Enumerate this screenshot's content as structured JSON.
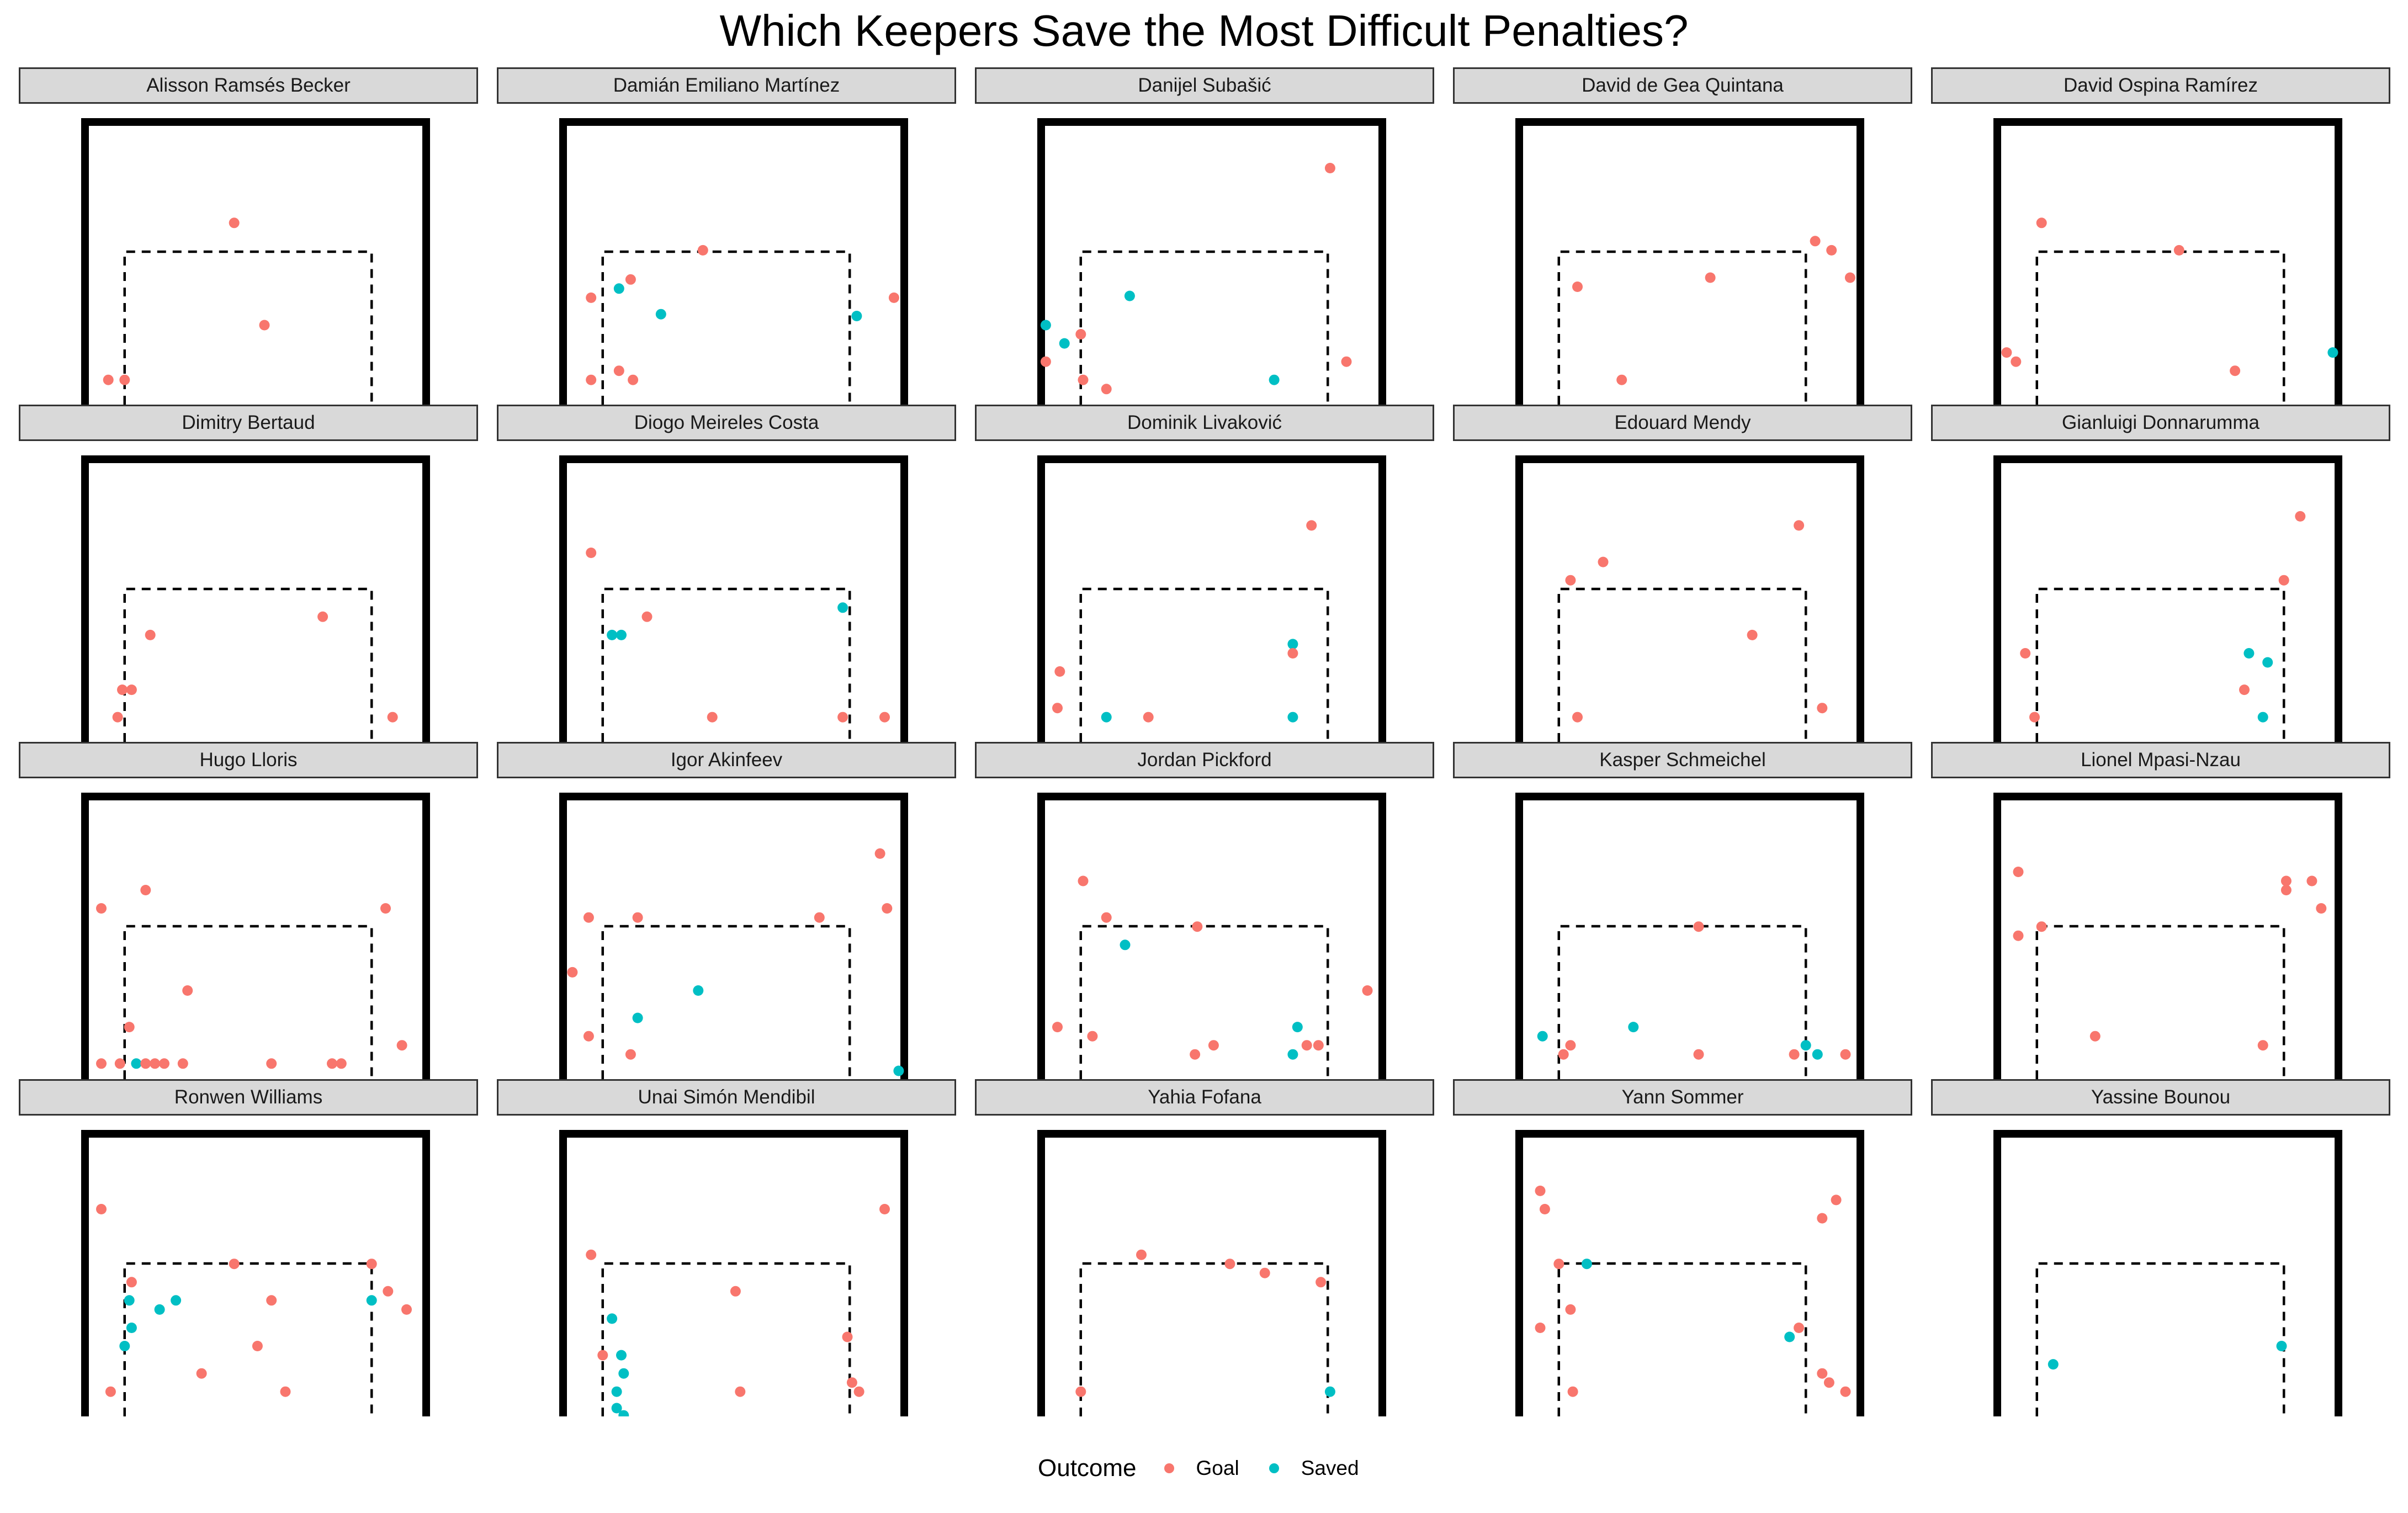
{
  "title": "Which Keepers Save the Most Difficult Penalties?",
  "legend": {
    "title": "Outcome",
    "entries": [
      {
        "label": "Goal",
        "color": "#F8766D"
      },
      {
        "label": "Saved",
        "color": "#00BFC4"
      }
    ]
  },
  "chart_data": {
    "type": "scatter",
    "facet_by": "goalkeeper",
    "x_range": [
      0,
      7.5
    ],
    "y_range": [
      0,
      2.75
    ],
    "goal_frame": {
      "left_post": 0,
      "right_post": 7.32,
      "crossbar": 2.44
    },
    "dashed_box": {
      "x": [
        0.9,
        6.1
      ],
      "top": 1.33
    },
    "panels": [
      {
        "name": "Alisson Ramsés Becker",
        "points": [
          [
            3.2,
            1.9,
            "Goal"
          ],
          [
            3.85,
            0.78,
            "Goal"
          ],
          [
            0.5,
            0.18,
            "Goal"
          ],
          [
            0.85,
            0.18,
            "Goal"
          ]
        ]
      },
      {
        "name": "Damián Emiliano Martínez",
        "points": [
          [
            3.0,
            1.6,
            "Goal"
          ],
          [
            0.6,
            1.08,
            "Goal"
          ],
          [
            1.45,
            1.28,
            "Goal"
          ],
          [
            1.2,
            1.18,
            "Saved"
          ],
          [
            2.1,
            0.9,
            "Saved"
          ],
          [
            7.1,
            1.08,
            "Goal"
          ],
          [
            6.3,
            0.88,
            "Saved"
          ],
          [
            0.6,
            0.18,
            "Goal"
          ],
          [
            1.2,
            0.28,
            "Goal"
          ],
          [
            1.5,
            0.18,
            "Goal"
          ]
        ]
      },
      {
        "name": "Danijel Subašić",
        "points": [
          [
            6.2,
            2.5,
            "Goal"
          ],
          [
            1.9,
            1.1,
            "Saved"
          ],
          [
            0.1,
            0.78,
            "Saved"
          ],
          [
            0.5,
            0.58,
            "Saved"
          ],
          [
            0.85,
            0.68,
            "Goal"
          ],
          [
            0.1,
            0.38,
            "Goal"
          ],
          [
            0.9,
            0.18,
            "Goal"
          ],
          [
            1.4,
            0.08,
            "Goal"
          ],
          [
            5.0,
            0.18,
            "Saved"
          ],
          [
            6.55,
            0.38,
            "Goal"
          ]
        ]
      },
      {
        "name": "David de Gea Quintana",
        "points": [
          [
            6.35,
            1.7,
            "Goal"
          ],
          [
            6.7,
            1.6,
            "Goal"
          ],
          [
            7.1,
            1.3,
            "Goal"
          ],
          [
            4.1,
            1.3,
            "Goal"
          ],
          [
            1.25,
            1.2,
            "Goal"
          ],
          [
            2.2,
            0.18,
            "Goal"
          ]
        ]
      },
      {
        "name": "David Ospina Ramírez",
        "points": [
          [
            0.95,
            1.9,
            "Goal"
          ],
          [
            3.9,
            1.6,
            "Goal"
          ],
          [
            0.2,
            0.48,
            "Goal"
          ],
          [
            0.4,
            0.38,
            "Goal"
          ],
          [
            5.1,
            0.28,
            "Goal"
          ],
          [
            7.2,
            0.48,
            "Saved"
          ]
        ]
      },
      {
        "name": "Dimitry Bertaud",
        "points": [
          [
            1.4,
            1.08,
            "Goal"
          ],
          [
            5.1,
            1.28,
            "Goal"
          ],
          [
            0.8,
            0.48,
            "Goal"
          ],
          [
            1.0,
            0.48,
            "Goal"
          ],
          [
            0.7,
            0.18,
            "Goal"
          ],
          [
            6.6,
            0.18,
            "Goal"
          ]
        ]
      },
      {
        "name": "Diogo Meireles Costa",
        "points": [
          [
            0.6,
            1.98,
            "Goal"
          ],
          [
            6.0,
            1.38,
            "Saved"
          ],
          [
            1.8,
            1.28,
            "Goal"
          ],
          [
            1.05,
            1.08,
            "Saved"
          ],
          [
            1.25,
            1.08,
            "Saved"
          ],
          [
            3.2,
            0.18,
            "Goal"
          ],
          [
            6.0,
            0.18,
            "Goal"
          ],
          [
            6.9,
            0.18,
            "Goal"
          ]
        ]
      },
      {
        "name": "Dominik Livaković",
        "points": [
          [
            5.8,
            2.28,
            "Goal"
          ],
          [
            5.4,
            0.98,
            "Saved"
          ],
          [
            5.4,
            0.88,
            "Goal"
          ],
          [
            0.4,
            0.68,
            "Goal"
          ],
          [
            0.35,
            0.28,
            "Goal"
          ],
          [
            1.4,
            0.18,
            "Saved"
          ],
          [
            2.3,
            0.18,
            "Goal"
          ],
          [
            5.4,
            0.18,
            "Saved"
          ]
        ]
      },
      {
        "name": "Edouard Mendy",
        "points": [
          [
            6.0,
            2.28,
            "Goal"
          ],
          [
            1.8,
            1.88,
            "Goal"
          ],
          [
            1.1,
            1.68,
            "Goal"
          ],
          [
            5.0,
            1.08,
            "Goal"
          ],
          [
            6.5,
            0.28,
            "Goal"
          ],
          [
            1.25,
            0.18,
            "Goal"
          ]
        ]
      },
      {
        "name": "Gianluigi Donnarumma",
        "points": [
          [
            6.5,
            2.38,
            "Goal"
          ],
          [
            6.15,
            1.68,
            "Goal"
          ],
          [
            0.6,
            0.88,
            "Goal"
          ],
          [
            5.4,
            0.88,
            "Saved"
          ],
          [
            5.8,
            0.78,
            "Saved"
          ],
          [
            5.3,
            0.48,
            "Goal"
          ],
          [
            0.8,
            0.18,
            "Goal"
          ],
          [
            5.7,
            0.18,
            "Saved"
          ]
        ]
      },
      {
        "name": "Hugo Lloris",
        "points": [
          [
            1.3,
            1.98,
            "Goal"
          ],
          [
            0.35,
            1.78,
            "Goal"
          ],
          [
            6.45,
            1.78,
            "Goal"
          ],
          [
            2.2,
            0.88,
            "Goal"
          ],
          [
            0.95,
            0.48,
            "Goal"
          ],
          [
            6.8,
            0.28,
            "Goal"
          ],
          [
            0.35,
            0.08,
            "Goal"
          ],
          [
            0.75,
            0.08,
            "Goal"
          ],
          [
            1.1,
            0.08,
            "Saved"
          ],
          [
            1.3,
            0.08,
            "Goal"
          ],
          [
            1.5,
            0.08,
            "Goal"
          ],
          [
            1.7,
            0.08,
            "Goal"
          ],
          [
            2.1,
            0.08,
            "Goal"
          ],
          [
            4.0,
            0.08,
            "Goal"
          ],
          [
            5.3,
            0.08,
            "Goal"
          ],
          [
            5.5,
            0.08,
            "Goal"
          ]
        ]
      },
      {
        "name": "Igor Akinfeev",
        "points": [
          [
            6.8,
            2.38,
            "Goal"
          ],
          [
            6.95,
            1.78,
            "Goal"
          ],
          [
            0.55,
            1.68,
            "Goal"
          ],
          [
            1.6,
            1.68,
            "Goal"
          ],
          [
            5.5,
            1.68,
            "Goal"
          ],
          [
            0.2,
            1.08,
            "Goal"
          ],
          [
            2.9,
            0.88,
            "Saved"
          ],
          [
            1.6,
            0.58,
            "Saved"
          ],
          [
            0.55,
            0.38,
            "Goal"
          ],
          [
            1.45,
            0.18,
            "Goal"
          ],
          [
            7.2,
            0.0,
            "Saved"
          ]
        ]
      },
      {
        "name": "Jordan Pickford",
        "points": [
          [
            0.9,
            2.08,
            "Goal"
          ],
          [
            1.4,
            1.68,
            "Goal"
          ],
          [
            3.35,
            1.58,
            "Goal"
          ],
          [
            1.8,
            1.38,
            "Saved"
          ],
          [
            7.0,
            0.88,
            "Goal"
          ],
          [
            0.35,
            0.48,
            "Goal"
          ],
          [
            1.1,
            0.38,
            "Goal"
          ],
          [
            5.5,
            0.48,
            "Saved"
          ],
          [
            3.3,
            0.18,
            "Goal"
          ],
          [
            3.7,
            0.28,
            "Goal"
          ],
          [
            5.4,
            0.18,
            "Saved"
          ],
          [
            5.7,
            0.28,
            "Goal"
          ],
          [
            5.95,
            0.28,
            "Goal"
          ]
        ]
      },
      {
        "name": "Kasper Schmeichel",
        "points": [
          [
            3.85,
            1.58,
            "Goal"
          ],
          [
            0.5,
            0.38,
            "Saved"
          ],
          [
            1.1,
            0.28,
            "Goal"
          ],
          [
            2.45,
            0.48,
            "Saved"
          ],
          [
            0.95,
            0.18,
            "Goal"
          ],
          [
            3.85,
            0.18,
            "Goal"
          ],
          [
            5.9,
            0.18,
            "Goal"
          ],
          [
            6.15,
            0.28,
            "Saved"
          ],
          [
            6.4,
            0.18,
            "Saved"
          ],
          [
            7.0,
            0.18,
            "Goal"
          ]
        ]
      },
      {
        "name": "Lionel Mpasi-Nzau",
        "points": [
          [
            0.45,
            2.18,
            "Goal"
          ],
          [
            6.2,
            2.08,
            "Goal"
          ],
          [
            6.75,
            2.08,
            "Goal"
          ],
          [
            6.2,
            1.98,
            "Goal"
          ],
          [
            6.95,
            1.78,
            "Goal"
          ],
          [
            0.95,
            1.58,
            "Goal"
          ],
          [
            0.45,
            1.48,
            "Goal"
          ],
          [
            2.1,
            0.38,
            "Goal"
          ],
          [
            5.7,
            0.28,
            "Goal"
          ]
        ]
      },
      {
        "name": "Ronwen Williams",
        "points": [
          [
            0.35,
            2.18,
            "Goal"
          ],
          [
            3.2,
            1.58,
            "Goal"
          ],
          [
            6.15,
            1.58,
            "Goal"
          ],
          [
            1.0,
            1.38,
            "Goal"
          ],
          [
            6.5,
            1.28,
            "Goal"
          ],
          [
            6.9,
            1.08,
            "Goal"
          ],
          [
            0.95,
            1.18,
            "Saved"
          ],
          [
            1.95,
            1.18,
            "Saved"
          ],
          [
            6.15,
            1.18,
            "Saved"
          ],
          [
            4.0,
            1.18,
            "Goal"
          ],
          [
            1.6,
            1.08,
            "Saved"
          ],
          [
            1.0,
            0.88,
            "Saved"
          ],
          [
            0.85,
            0.68,
            "Saved"
          ],
          [
            3.7,
            0.68,
            "Goal"
          ],
          [
            2.5,
            0.38,
            "Goal"
          ],
          [
            0.55,
            0.18,
            "Goal"
          ],
          [
            4.3,
            0.18,
            "Goal"
          ]
        ]
      },
      {
        "name": "Unai Simón Mendibil",
        "points": [
          [
            6.9,
            2.18,
            "Goal"
          ],
          [
            0.6,
            1.68,
            "Goal"
          ],
          [
            3.7,
            1.28,
            "Goal"
          ],
          [
            1.05,
            0.98,
            "Saved"
          ],
          [
            6.1,
            0.78,
            "Goal"
          ],
          [
            0.85,
            0.58,
            "Goal"
          ],
          [
            1.25,
            0.58,
            "Saved"
          ],
          [
            1.3,
            0.38,
            "Saved"
          ],
          [
            1.15,
            0.18,
            "Saved"
          ],
          [
            3.8,
            0.18,
            "Goal"
          ],
          [
            6.2,
            0.28,
            "Goal"
          ],
          [
            6.35,
            0.18,
            "Goal"
          ],
          [
            1.15,
            0.0,
            "Saved"
          ],
          [
            1.3,
            -0.08,
            "Saved"
          ]
        ]
      },
      {
        "name": "Yahia Fofana",
        "points": [
          [
            2.15,
            1.68,
            "Goal"
          ],
          [
            4.05,
            1.58,
            "Goal"
          ],
          [
            4.8,
            1.48,
            "Goal"
          ],
          [
            6.0,
            1.38,
            "Goal"
          ],
          [
            0.85,
            0.18,
            "Goal"
          ],
          [
            6.2,
            0.18,
            "Saved"
          ]
        ]
      },
      {
        "name": "Yann Sommer",
        "points": [
          [
            0.45,
            2.38,
            "Goal"
          ],
          [
            6.8,
            2.28,
            "Goal"
          ],
          [
            0.55,
            2.18,
            "Goal"
          ],
          [
            6.5,
            2.08,
            "Goal"
          ],
          [
            0.85,
            1.58,
            "Goal"
          ],
          [
            1.45,
            1.58,
            "Saved"
          ],
          [
            1.1,
            1.08,
            "Goal"
          ],
          [
            0.45,
            0.88,
            "Goal"
          ],
          [
            6.0,
            0.88,
            "Goal"
          ],
          [
            5.8,
            0.78,
            "Saved"
          ],
          [
            6.5,
            0.38,
            "Goal"
          ],
          [
            6.65,
            0.28,
            "Goal"
          ],
          [
            7.0,
            0.18,
            "Goal"
          ],
          [
            1.15,
            0.18,
            "Goal"
          ]
        ]
      },
      {
        "name": "Yassine Bounou",
        "points": [
          [
            1.2,
            0.48,
            "Saved"
          ],
          [
            6.1,
            0.68,
            "Saved"
          ]
        ]
      }
    ]
  }
}
